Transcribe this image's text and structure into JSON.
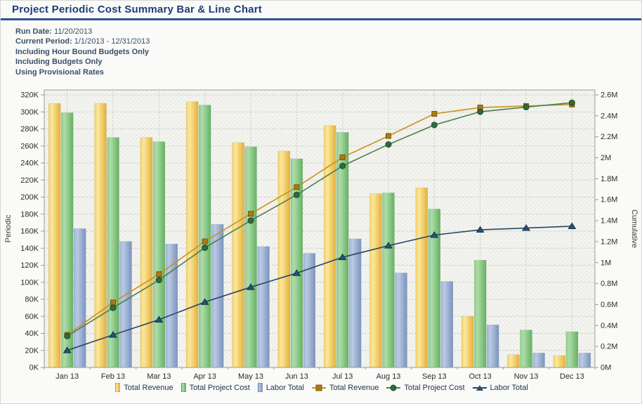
{
  "header": {
    "title": "Project Periodic Cost Summary Bar & Line Chart"
  },
  "info": {
    "run_date_label": "Run Date:",
    "run_date_value": "11/20/2013",
    "current_period_label": "Current Period:",
    "current_period_value": "1/1/2013 - 12/31/2013",
    "note_1": "Including Hour Bound Budgets Only",
    "note_2": "Including Budgets Only",
    "note_3": "Using Provisional Rates"
  },
  "colors": {
    "title": "#1C3E78",
    "title_rule": "#2E4F97",
    "info_text": "#3A5068",
    "plot_bg": "#F4F4F0",
    "plot_hatch": "#E8E8E2",
    "grid": "#C8C8C2",
    "axis_line": "#9B9B95",
    "tick_text": "#2B2B2B",
    "axis_title": "#3C3C3C",
    "legend_text": "#21364F"
  },
  "chart_data": {
    "type": "bar-line-combo",
    "categories": [
      "Jan 13",
      "Feb 13",
      "Mar 13",
      "Apr 13",
      "May 13",
      "Jun 13",
      "Jul 13",
      "Aug 13",
      "Sep 13",
      "Oct 13",
      "Nov 13",
      "Dec 13"
    ],
    "left_axis": {
      "title": "Periodic",
      "min": 0,
      "max": 320,
      "step": 20,
      "unit": "K"
    },
    "right_axis": {
      "title": "Cumulative",
      "min": 0,
      "max": 2.6,
      "step": 0.2,
      "unit": "M"
    },
    "grid": true,
    "legend_position": "bottom",
    "bar_series": [
      {
        "name": "Total Revenue",
        "values_k": [
          310,
          310,
          270,
          312,
          264,
          254,
          284,
          204,
          211,
          60,
          15,
          14
        ],
        "gradient": [
          "#F4D06A",
          "#FAE89C",
          "#E6B038"
        ]
      },
      {
        "name": "Total Project Cost",
        "values_k": [
          299,
          270,
          265,
          308,
          259,
          245,
          276,
          205,
          186,
          126,
          44,
          42
        ],
        "gradient": [
          "#8FCC8E",
          "#AEDCA8",
          "#63B163"
        ]
      },
      {
        "name": "Labor Total",
        "values_k": [
          163,
          148,
          145,
          168,
          142,
          134,
          151,
          111,
          101,
          50,
          17,
          17
        ],
        "gradient": [
          "#9DB3D4",
          "#BACAE3",
          "#7A94BE"
        ]
      }
    ],
    "line_series": [
      {
        "name": "Total Revenue",
        "marker": "square",
        "values_k": [
          310,
          620,
          890,
          1202,
          1466,
          1720,
          2004,
          2208,
          2419,
          2479,
          2494,
          2508
        ],
        "line_color": "#C9921C",
        "marker_fill": "#B0790F",
        "marker_stroke": "#7A5408"
      },
      {
        "name": "Total Project Cost",
        "marker": "circle",
        "values_k": [
          299,
          569,
          834,
          1142,
          1401,
          1646,
          1922,
          2127,
          2313,
          2439,
          2483,
          2525
        ],
        "line_color": "#4C7F4C",
        "marker_fill": "#2F6B3C",
        "marker_stroke": "#1D4827"
      },
      {
        "name": "Labor Total",
        "marker": "triangle",
        "values_k": [
          163,
          311,
          456,
          624,
          766,
          900,
          1051,
          1162,
          1263,
          1313,
          1330,
          1347
        ],
        "line_color": "#2A4563",
        "marker_fill": "#2E4E72",
        "marker_stroke": "#16314E"
      }
    ]
  }
}
